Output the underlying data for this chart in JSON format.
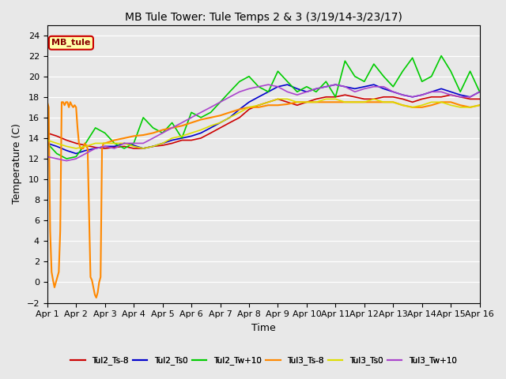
{
  "title": "MB Tule Tower: Tule Temps 2 & 3 (3/19/14-3/23/17)",
  "xlabel": "Time",
  "ylabel": "Temperature (C)",
  "ylim": [
    -2,
    25
  ],
  "yticks": [
    -2,
    0,
    2,
    4,
    6,
    8,
    10,
    12,
    14,
    16,
    18,
    20,
    22,
    24
  ],
  "xlim": [
    0,
    15
  ],
  "xtick_labels": [
    "Apr 1",
    "Apr 2",
    "Apr 3",
    "Apr 4",
    "Apr 5",
    "Apr 6",
    "Apr 7",
    "Apr 8",
    "Apr 9",
    "Apr 10",
    "Apr 11",
    "Apr 12",
    "Apr 13",
    "Apr 14",
    "Apr 15",
    "Apr 16"
  ],
  "legend_label": "MB_tule",
  "bg_color": "#e8e8e8",
  "grid_color": "#ffffff",
  "series": [
    {
      "name": "Tul2_Ts-8",
      "color": "#cc0000",
      "lw": 1.2,
      "x": [
        0,
        0.33,
        0.67,
        1,
        1.33,
        1.67,
        2,
        2.33,
        2.67,
        3,
        3.33,
        3.67,
        4,
        4.33,
        4.67,
        5,
        5.33,
        5.67,
        6,
        6.33,
        6.67,
        7,
        7.33,
        7.67,
        8,
        8.33,
        8.67,
        9,
        9.33,
        9.67,
        10,
        10.33,
        10.67,
        11,
        11.33,
        11.67,
        12,
        12.33,
        12.67,
        13,
        13.33,
        13.67,
        14,
        14.33,
        14.67,
        15
      ],
      "y": [
        14.5,
        14.2,
        13.8,
        13.5,
        13.3,
        13.1,
        13.0,
        13.1,
        13.2,
        13.0,
        13.0,
        13.2,
        13.3,
        13.5,
        13.8,
        13.8,
        14.0,
        14.5,
        15.0,
        15.5,
        16.0,
        16.8,
        17.2,
        17.5,
        17.8,
        17.5,
        17.2,
        17.5,
        17.8,
        18.0,
        18.0,
        18.2,
        18.0,
        17.8,
        17.8,
        18.0,
        18.0,
        17.8,
        17.5,
        17.8,
        18.0,
        18.0,
        18.2,
        18.0,
        17.8,
        17.8
      ]
    },
    {
      "name": "Tul2_Ts0",
      "color": "#0000cc",
      "lw": 1.2,
      "x": [
        0,
        0.33,
        0.67,
        1,
        1.33,
        1.67,
        2,
        2.33,
        2.67,
        3,
        3.33,
        3.67,
        4,
        4.33,
        4.67,
        5,
        5.33,
        5.67,
        6,
        6.33,
        6.67,
        7,
        7.33,
        7.67,
        8,
        8.33,
        8.67,
        9,
        9.33,
        9.67,
        10,
        10.33,
        10.67,
        11,
        11.33,
        11.67,
        12,
        12.33,
        12.67,
        13,
        13.33,
        13.67,
        14,
        14.33,
        14.67,
        15
      ],
      "y": [
        13.5,
        13.2,
        12.8,
        12.5,
        12.8,
        13.0,
        13.2,
        13.2,
        13.5,
        13.3,
        13.0,
        13.2,
        13.5,
        13.8,
        14.0,
        14.2,
        14.5,
        15.0,
        15.5,
        16.0,
        16.8,
        17.5,
        18.0,
        18.5,
        19.0,
        19.2,
        18.8,
        18.5,
        18.8,
        19.0,
        19.2,
        19.0,
        18.8,
        19.0,
        19.2,
        18.8,
        18.5,
        18.2,
        18.0,
        18.2,
        18.5,
        18.8,
        18.5,
        18.2,
        18.0,
        18.5
      ]
    },
    {
      "name": "Tul2_Tw+10",
      "color": "#00cc00",
      "lw": 1.2,
      "x": [
        0,
        0.33,
        0.67,
        1,
        1.33,
        1.67,
        2,
        2.33,
        2.67,
        3,
        3.33,
        3.67,
        4,
        4.33,
        4.67,
        5,
        5.33,
        5.67,
        6,
        6.33,
        6.67,
        7,
        7.33,
        7.67,
        8,
        8.33,
        8.67,
        9,
        9.33,
        9.67,
        10,
        10.33,
        10.67,
        11,
        11.33,
        11.67,
        12,
        12.33,
        12.67,
        13,
        13.33,
        13.67,
        14,
        14.33,
        14.67,
        15
      ],
      "y": [
        13.5,
        12.5,
        12.0,
        12.2,
        13.5,
        15.0,
        14.5,
        13.5,
        13.0,
        13.5,
        16.0,
        15.0,
        14.5,
        15.5,
        14.0,
        16.5,
        16.0,
        16.5,
        17.5,
        18.5,
        19.5,
        20.0,
        19.0,
        18.5,
        20.5,
        19.5,
        18.5,
        19.0,
        18.5,
        19.5,
        18.0,
        21.5,
        20.0,
        19.5,
        21.2,
        20.0,
        19.0,
        20.5,
        21.8,
        19.5,
        20.0,
        22.0,
        20.5,
        18.5,
        20.5,
        18.5
      ]
    },
    {
      "name": "Tul3_Ts-8",
      "color": "#ff8800",
      "lw": 1.5,
      "x": [
        0,
        0.05,
        0.1,
        0.15,
        0.2,
        0.25,
        0.3,
        0.35,
        0.4,
        0.45,
        0.5,
        0.55,
        0.6,
        0.65,
        0.7,
        0.75,
        0.8,
        0.85,
        0.9,
        0.95,
        1.0,
        1.05,
        1.1,
        1.15,
        1.2,
        1.25,
        1.3,
        1.4,
        1.5,
        1.55,
        1.6,
        1.65,
        1.7,
        1.75,
        1.8,
        1.85,
        1.9,
        1.95,
        2.0,
        2.33,
        2.67,
        3,
        3.33,
        3.67,
        4,
        4.33,
        4.67,
        5,
        5.33,
        5.67,
        6,
        6.33,
        6.67,
        7,
        7.33,
        7.67,
        8,
        8.33,
        8.67,
        9,
        9.33,
        9.67,
        10,
        10.33,
        10.67,
        11,
        11.33,
        11.67,
        12,
        12.33,
        12.67,
        13,
        13.33,
        13.67,
        14,
        14.33,
        14.67,
        15
      ],
      "y": [
        17.5,
        17.0,
        5.0,
        1.0,
        0.2,
        -0.5,
        0.0,
        0.5,
        1.0,
        5.0,
        17.5,
        17.5,
        17.2,
        17.5,
        17.5,
        17.0,
        17.5,
        17.2,
        17.0,
        17.2,
        17.0,
        15.0,
        13.5,
        13.0,
        13.0,
        13.0,
        13.5,
        13.0,
        0.5,
        0.2,
        -0.5,
        -1.2,
        -1.5,
        -1.0,
        0.0,
        0.5,
        13.0,
        13.5,
        13.5,
        13.8,
        14.0,
        14.2,
        14.3,
        14.5,
        14.8,
        15.0,
        15.2,
        15.5,
        15.8,
        16.0,
        16.2,
        16.5,
        16.8,
        17.0,
        17.0,
        17.2,
        17.2,
        17.3,
        17.5,
        17.5,
        17.5,
        17.5,
        17.5,
        17.5,
        17.5,
        17.5,
        17.5,
        17.5,
        17.5,
        17.2,
        17.0,
        17.0,
        17.2,
        17.5,
        17.5,
        17.2,
        17.0,
        17.2
      ]
    },
    {
      "name": "Tul3_Ts0",
      "color": "#dddd00",
      "lw": 1.2,
      "x": [
        0,
        0.33,
        0.67,
        1,
        1.33,
        1.67,
        2,
        2.33,
        2.67,
        3,
        3.33,
        3.67,
        4,
        4.33,
        4.67,
        5,
        5.33,
        5.67,
        6,
        6.33,
        6.67,
        7,
        7.33,
        7.67,
        8,
        8.33,
        8.67,
        9,
        9.33,
        9.67,
        10,
        10.33,
        10.67,
        11,
        11.33,
        11.67,
        12,
        12.33,
        12.67,
        13,
        13.33,
        13.67,
        14,
        14.33,
        14.67,
        15
      ],
      "y": [
        13.8,
        13.5,
        13.2,
        13.0,
        13.2,
        13.5,
        13.5,
        13.5,
        13.5,
        13.2,
        13.0,
        13.2,
        13.5,
        14.0,
        14.2,
        14.5,
        14.8,
        15.2,
        15.5,
        16.0,
        16.5,
        17.0,
        17.2,
        17.5,
        17.8,
        17.8,
        17.5,
        17.5,
        17.5,
        17.8,
        17.8,
        17.5,
        17.5,
        17.5,
        17.8,
        17.5,
        17.5,
        17.2,
        17.0,
        17.2,
        17.5,
        17.5,
        17.2,
        17.0,
        17.0,
        17.2
      ]
    },
    {
      "name": "Tul3_Tw+10",
      "color": "#aa44cc",
      "lw": 1.2,
      "x": [
        0,
        0.33,
        0.67,
        1,
        1.33,
        1.67,
        2,
        2.33,
        2.67,
        3,
        3.33,
        3.67,
        4,
        4.33,
        4.67,
        5,
        5.33,
        5.67,
        6,
        6.33,
        6.67,
        7,
        7.33,
        7.67,
        8,
        8.33,
        8.67,
        9,
        9.33,
        9.67,
        10,
        10.33,
        10.67,
        11,
        11.33,
        11.67,
        12,
        12.33,
        12.67,
        13,
        13.33,
        13.67,
        14,
        14.33,
        14.67,
        15
      ],
      "y": [
        12.2,
        12.0,
        11.8,
        12.0,
        12.5,
        13.0,
        13.2,
        13.0,
        13.5,
        13.5,
        13.5,
        14.0,
        14.5,
        15.0,
        15.5,
        16.0,
        16.5,
        17.0,
        17.5,
        18.0,
        18.5,
        18.8,
        19.0,
        19.2,
        19.0,
        18.5,
        18.2,
        18.5,
        18.8,
        19.0,
        19.2,
        19.0,
        18.5,
        18.8,
        19.0,
        19.0,
        18.5,
        18.2,
        18.0,
        18.2,
        18.5,
        18.5,
        18.2,
        18.0,
        18.0,
        18.5
      ]
    }
  ]
}
